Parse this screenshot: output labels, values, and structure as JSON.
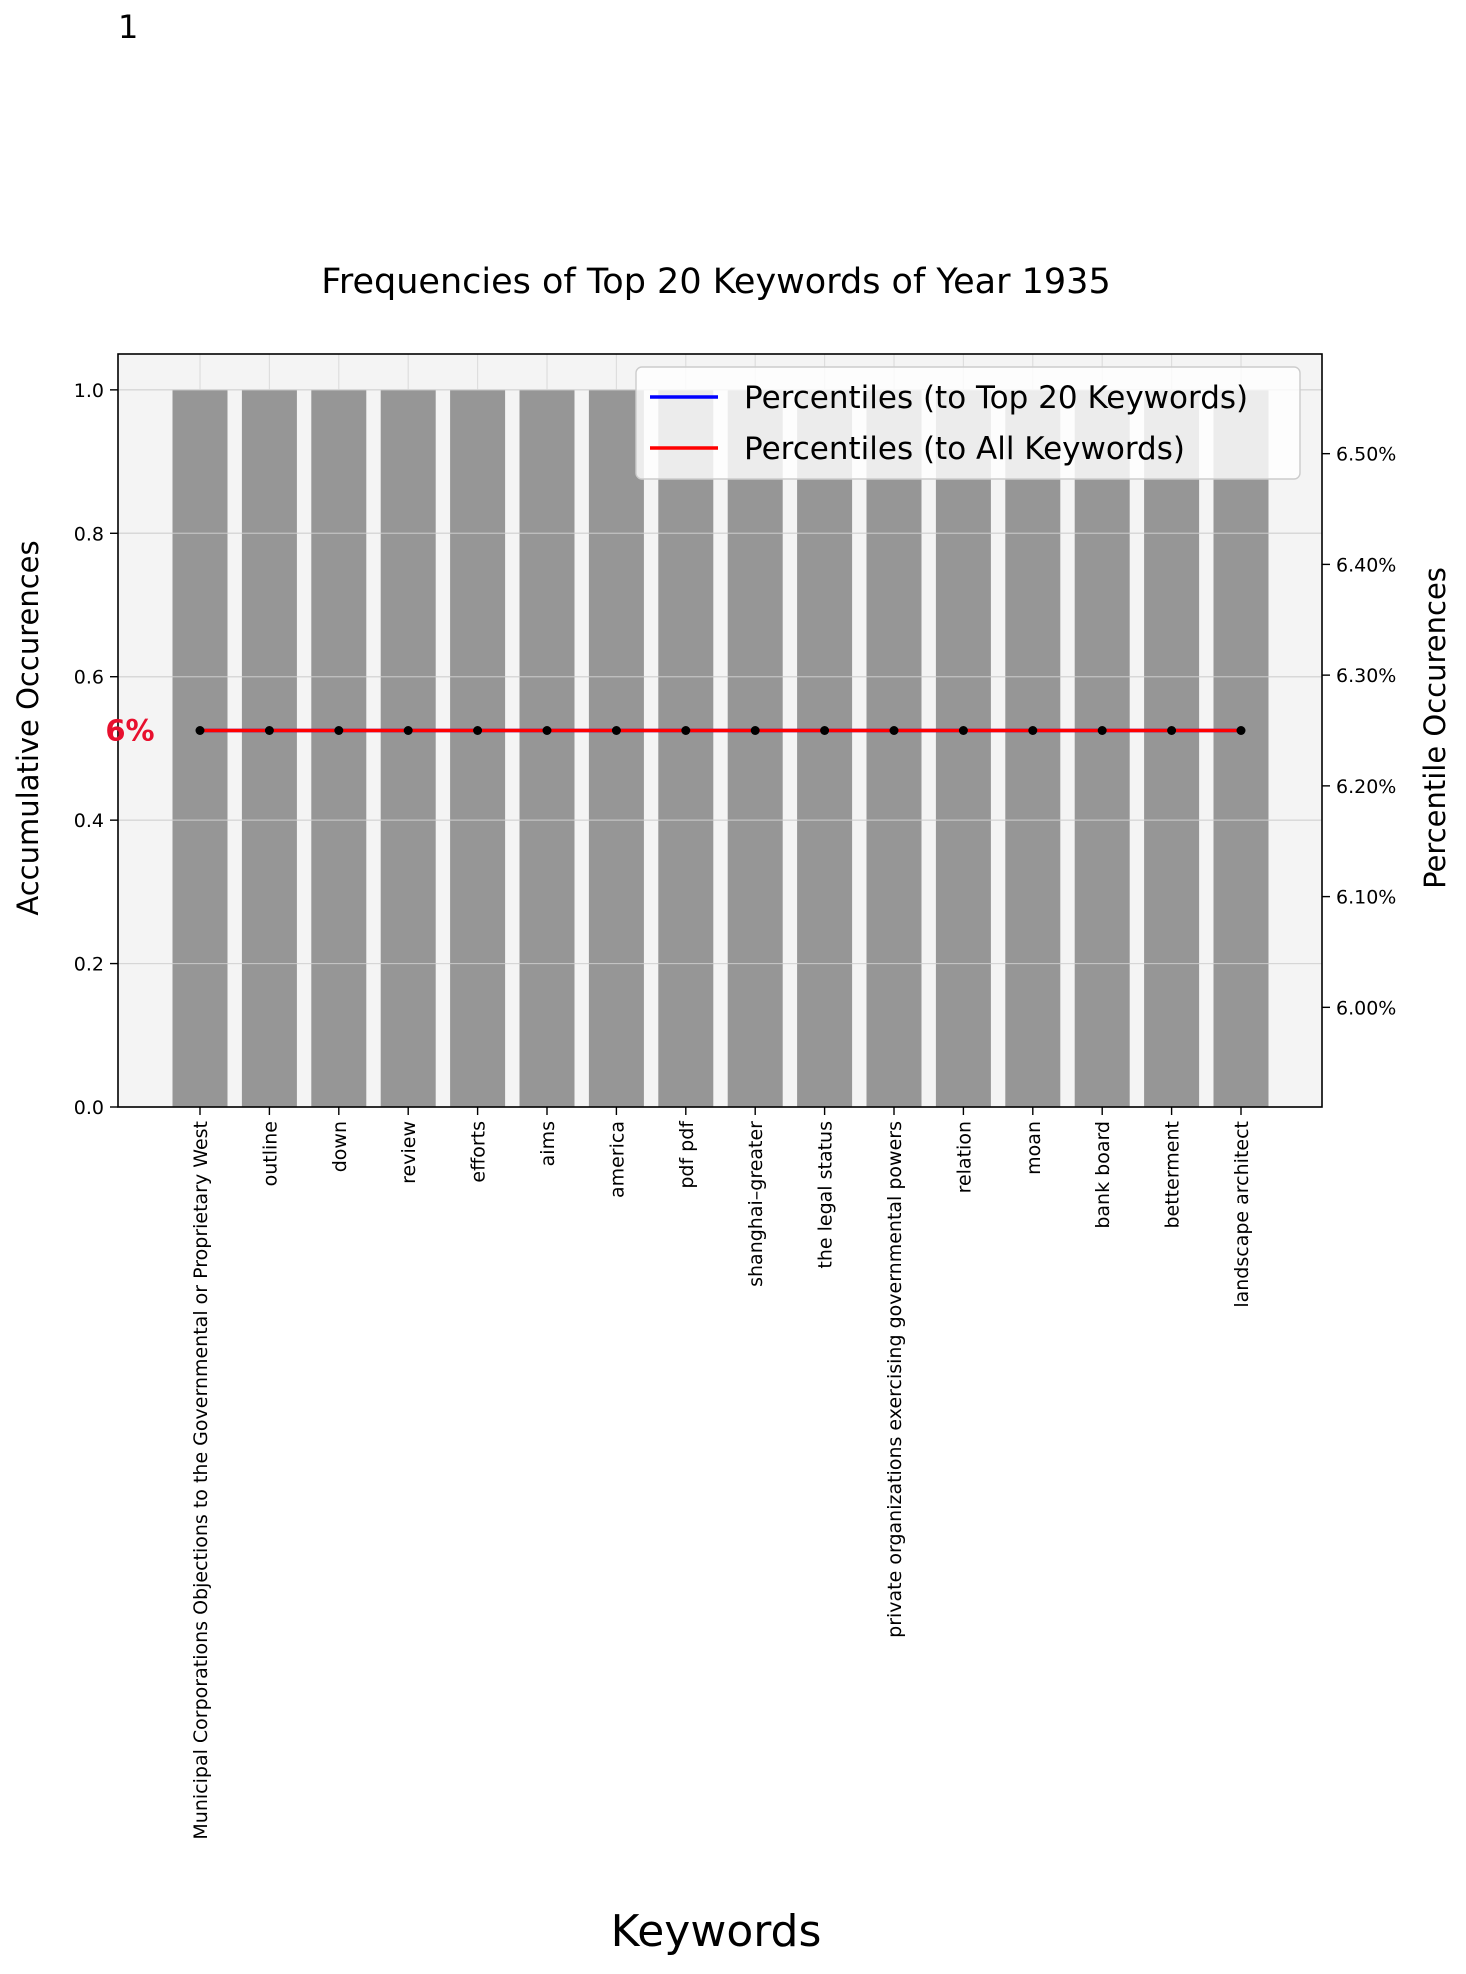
{
  "page_number": "1",
  "chart_data": {
    "type": "bar",
    "title": "Frequencies of Top 20 Keywords of Year 1935",
    "xlabel": "Keywords",
    "ylabel": "Accumulative Occurences",
    "y2label": "Percentile Occurences",
    "categories": [
      "Municipal Corporations Objections to the Governmental or Proprietary West",
      "outline",
      "down",
      "review",
      "efforts",
      "aims",
      "america",
      "pdf pdf",
      "shanghai–greater",
      "the legal status",
      "private organizations exercising governmental powers",
      "relation",
      "moan",
      "bank board",
      "betterment",
      "landscape architect"
    ],
    "values": [
      1,
      1,
      1,
      1,
      1,
      1,
      1,
      1,
      1,
      1,
      1,
      1,
      1,
      1,
      1,
      1
    ],
    "ylim": [
      0,
      1.05
    ],
    "yticks": [
      "0.0",
      "0.2",
      "0.4",
      "0.6",
      "0.8",
      "1.0"
    ],
    "y2lim": [
      5.91,
      6.59
    ],
    "y2ticks": [
      "6.00%",
      "6.10%",
      "6.20%",
      "6.30%",
      "6.40%",
      "6.50%"
    ],
    "series": [
      {
        "name": "Percentiles (to Top 20 Keywords)",
        "color": "#0000ff",
        "values": [
          6.25,
          6.25,
          6.25,
          6.25,
          6.25,
          6.25,
          6.25,
          6.25,
          6.25,
          6.25,
          6.25,
          6.25,
          6.25,
          6.25,
          6.25,
          6.25
        ]
      },
      {
        "name": "Percentiles (to All Keywords)",
        "color": "#ff0000",
        "values": [
          6.25,
          6.25,
          6.25,
          6.25,
          6.25,
          6.25,
          6.25,
          6.25,
          6.25,
          6.25,
          6.25,
          6.25,
          6.25,
          6.25,
          6.25,
          6.25
        ]
      }
    ],
    "annotation": "6%",
    "annotation_color": "#e8102e",
    "bar_color": "#969696",
    "plot_background": "#f4f4f4",
    "grid": true,
    "legend_position": "top-right"
  }
}
